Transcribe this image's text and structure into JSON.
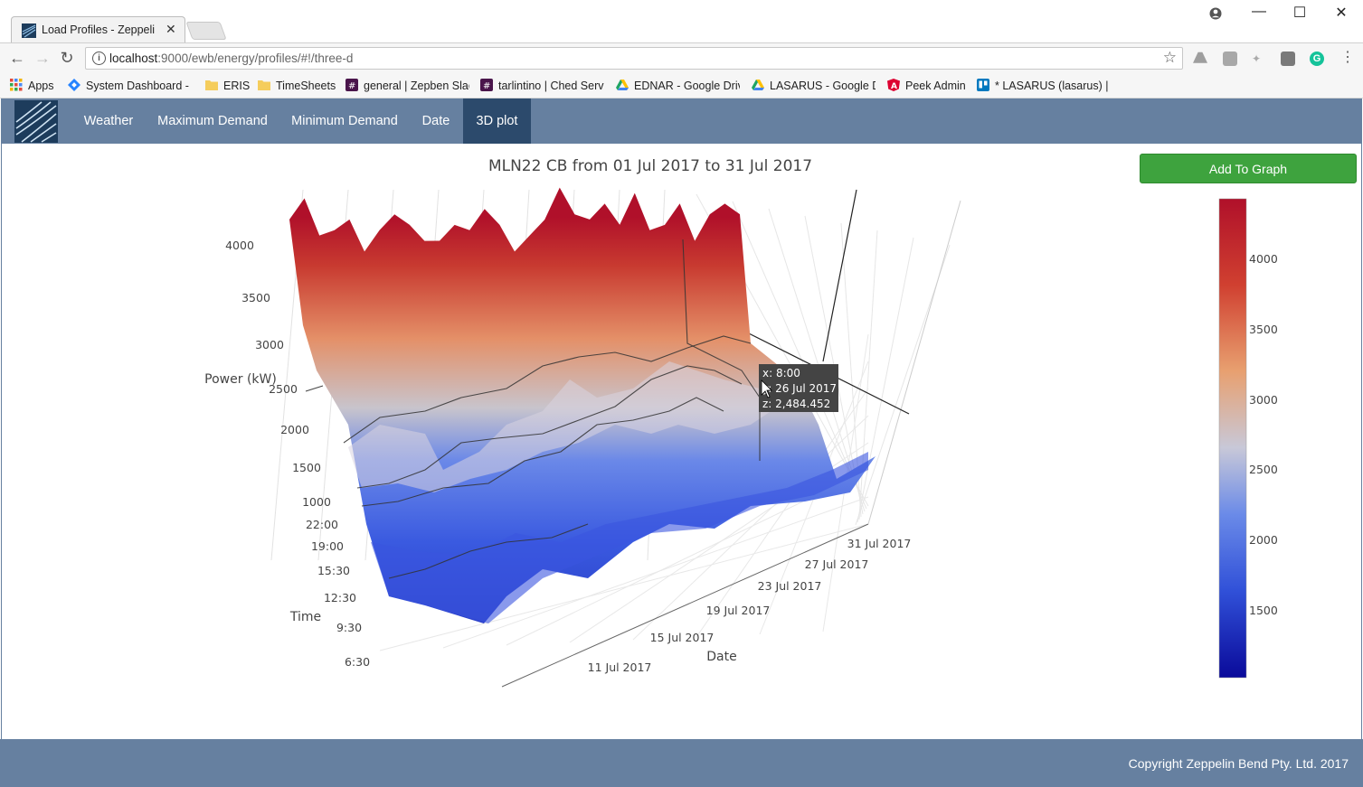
{
  "browser": {
    "tab_title": "Load Profiles - Zeppelin B",
    "url_host": "localhost",
    "url_rest": ":9000/ewb/energy/profiles/#!/three-d",
    "bookmarks": [
      {
        "label": "Apps",
        "icon": "apps-grid-icon"
      },
      {
        "label": "System Dashboard -",
        "icon": "jira-icon"
      },
      {
        "label": "ERIS",
        "icon": "folder-icon"
      },
      {
        "label": "TimeSheets",
        "icon": "folder-icon"
      },
      {
        "label": "general | Zepben Slac",
        "icon": "slack-icon"
      },
      {
        "label": "tarlintino | Ched Serv",
        "icon": "slack-icon"
      },
      {
        "label": "EDNAR - Google Driv",
        "icon": "google-drive-icon"
      },
      {
        "label": "LASARUS - Google D",
        "icon": "google-drive-icon"
      },
      {
        "label": "Peek Admin",
        "icon": "angular-icon"
      },
      {
        "label": "* LASARUS (lasarus) |",
        "icon": "trello-icon"
      }
    ]
  },
  "nav": {
    "items": [
      {
        "label": "Weather"
      },
      {
        "label": "Maximum Demand"
      },
      {
        "label": "Minimum Demand"
      },
      {
        "label": "Date"
      },
      {
        "label": "3D plot",
        "active": true
      }
    ]
  },
  "add_button_label": "Add To Graph",
  "footer": {
    "copyright": "Copyright Zeppelin Bend Pty. Ltd. 2017"
  },
  "colors": {
    "nav_bg": "#6680a0",
    "nav_active": "#2c4a6c",
    "button_green": "#3ea33e"
  },
  "chart_data": {
    "type": "surface",
    "title": "MLN22 CB from 01 Jul 2017 to 31 Jul 2017",
    "zlabel": "Power (kW)",
    "ylabel": "Time",
    "xlabel": "Date",
    "z_ticks": [
      "4000",
      "3500",
      "3000",
      "2500",
      "2000",
      "1500",
      "1000"
    ],
    "time_ticks": [
      "22:00",
      "19:00",
      "15:30",
      "12:30",
      "9:30",
      "6:30"
    ],
    "date_ticks": [
      "11 Jul 2017",
      "15 Jul 2017",
      "19 Jul 2017",
      "23 Jul 2017",
      "27 Jul 2017",
      "31 Jul 2017"
    ],
    "colorscale": [
      "#0a0a9a",
      "#3050d8",
      "#6a8ae8",
      "#c8c8d8",
      "#e8a070",
      "#d04030",
      "#b0102a"
    ],
    "colorbar_ticks": [
      "4000",
      "3500",
      "3000",
      "2500",
      "2000",
      "1500"
    ],
    "zrange": [
      1000,
      4400
    ],
    "max_profile": [
      3950,
      4200,
      3800,
      3900,
      3950,
      3700,
      3850,
      4050,
      3900,
      3800,
      3750,
      3950,
      3850,
      4100,
      3900,
      3700,
      3800,
      4000,
      4250,
      4050,
      3950,
      4150,
      3900,
      4250,
      3850,
      3950,
      4100,
      3800,
      4000,
      4150,
      4000
    ],
    "hover": {
      "x": "8:00",
      "y": "26 Jul 2017",
      "z": "2,484.452"
    }
  }
}
